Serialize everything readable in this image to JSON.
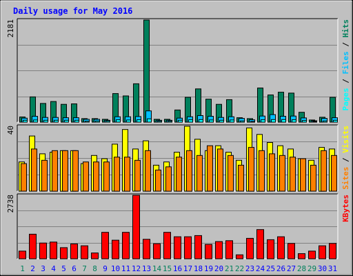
{
  "chart_data": {
    "type": "bar",
    "title": "Daily usage for May 2016",
    "categories": [
      "1",
      "2",
      "3",
      "4",
      "5",
      "6",
      "7",
      "8",
      "9",
      "10",
      "11",
      "12",
      "13",
      "14",
      "15",
      "16",
      "17",
      "18",
      "19",
      "20",
      "21",
      "22",
      "23",
      "24",
      "25",
      "26",
      "27",
      "28",
      "29",
      "30",
      "31"
    ],
    "weekend_days": [
      "1",
      "7",
      "8",
      "14",
      "15",
      "21",
      "22",
      "28",
      "29"
    ],
    "panels": [
      {
        "id": "hits-files-pages",
        "ymax": 2181,
        "ymax_label": "2181",
        "side_label_parts": [
          "Pages",
          " / ",
          "Files",
          " / ",
          "Hits"
        ],
        "series": [
          {
            "name": "Hits",
            "values": [
              110,
              540,
              400,
              440,
              380,
              390,
              75,
              75,
              60,
              610,
              560,
              820,
              2181,
              60,
              60,
              260,
              530,
              710,
              490,
              380,
              480,
              95,
              75,
              730,
              580,
              640,
              620,
              210,
              45,
              105,
              530
            ]
          },
          {
            "name": "Files",
            "values": [
              85,
              125,
              100,
              100,
              95,
              95,
              60,
              60,
              40,
              115,
              115,
              120,
              240,
              40,
              40,
              85,
              115,
              140,
              125,
              100,
              115,
              80,
              50,
              130,
              160,
              125,
              130,
              90,
              30,
              80,
              95
            ]
          },
          {
            "name": "Pages",
            "values": [
              40,
              45,
              40,
              40,
              40,
              40,
              20,
              25,
              25,
              50,
              45,
              50,
              70,
              20,
              20,
              40,
              50,
              55,
              45,
              40,
              45,
              25,
              15,
              50,
              55,
              55,
              50,
              35,
              10,
              25,
              40
            ]
          }
        ]
      },
      {
        "id": "visits-sites",
        "ymax": 40,
        "ymax_label": "40",
        "side_label_parts": [
          "Sites",
          " / ",
          "Visits"
        ],
        "series": [
          {
            "name": "Visits",
            "values": [
              18,
              34,
              23,
              24,
              25,
              25,
              17,
              22,
              20,
              29,
              38,
              26,
              31,
              16,
              18,
              24,
              40,
              32,
              25,
              28,
              24,
              19,
              39,
              35,
              30,
              28,
              26,
              20,
              19,
              27,
              26
            ]
          },
          {
            "name": "Sites",
            "values": [
              17,
              26,
              19,
              25,
              25,
              25,
              18,
              18,
              18,
              21,
              21,
              19,
              25,
              13,
              15,
              21,
              25,
              22,
              28,
              26,
              22,
              16,
              27,
              25,
              23,
              22,
              21,
              20,
              16,
              25,
              22
            ]
          }
        ]
      },
      {
        "id": "kbytes",
        "ymax": 2738,
        "ymax_label": "2738",
        "side_label_parts": [
          "KBytes"
        ],
        "series": [
          {
            "name": "KBytes",
            "values": [
              330,
              1060,
              680,
              720,
              480,
              640,
              560,
              250,
              1140,
              800,
              1140,
              2738,
              840,
              650,
              1140,
              950,
              950,
              1000,
              620,
              740,
              780,
              170,
              880,
              1260,
              820,
              950,
              660,
              220,
              330,
              560,
              660
            ]
          }
        ]
      }
    ],
    "colors": {
      "Hits": "#00805c",
      "Files": "#00c0ff",
      "Pages": "#00ffff",
      "Visits": "#ffff00",
      "Sites": "#ff8000",
      "KBytes": "#ff0000",
      "title": "#0000ff",
      "weekend_label": "#00805c",
      "weekday_label": "#0000ff",
      "panel_bg": "#c0c0c0",
      "frame_bg": "#c0c0c0"
    }
  }
}
